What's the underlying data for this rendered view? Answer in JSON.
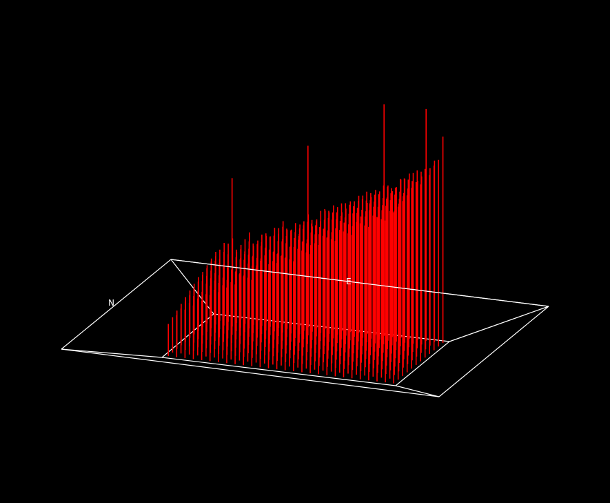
{
  "chart_data": {
    "type": "3d-spike",
    "labels": {
      "north": "N",
      "east": "E"
    },
    "colors": {
      "background": "#000000",
      "spikes": "#ff0000",
      "frame": "#ffffff"
    },
    "grid": false,
    "legend": "none",
    "rows": 12,
    "cols": 28,
    "zlim": [
      0,
      1
    ],
    "heights": [
      [
        0.42,
        0.48,
        0.51,
        0.47,
        0.55,
        0.5,
        0.53,
        0.58,
        0.62,
        0.57,
        0.6,
        0.66,
        0.63,
        0.68,
        0.71,
        0.67,
        0.73,
        0.76,
        0.72,
        0.79,
        0.81,
        0.78,
        0.84,
        0.87,
        0.83,
        0.9,
        0.93,
        0.88
      ],
      [
        0.4,
        0.46,
        0.5,
        0.45,
        0.53,
        0.49,
        0.56,
        0.55,
        0.6,
        0.59,
        0.63,
        0.64,
        0.61,
        0.7,
        0.69,
        0.72,
        0.71,
        0.75,
        0.78,
        0.77,
        0.8,
        0.83,
        0.82,
        0.86,
        0.89,
        0.87,
        0.91,
        0.95
      ],
      [
        0.38,
        0.44,
        0.47,
        0.52,
        0.49,
        0.54,
        0.52,
        0.59,
        0.57,
        0.63,
        0.61,
        0.62,
        0.67,
        0.66,
        0.73,
        0.7,
        0.76,
        0.74,
        0.77,
        0.82,
        0.79,
        0.85,
        0.81,
        0.88,
        0.85,
        0.92,
        0.89,
        0.94
      ],
      [
        0.36,
        0.43,
        0.45,
        0.48,
        0.51,
        0.5,
        0.55,
        0.56,
        0.59,
        0.61,
        0.64,
        0.62,
        0.66,
        0.69,
        0.68,
        0.74,
        0.72,
        0.78,
        0.75,
        0.8,
        0.83,
        0.8,
        0.86,
        0.84,
        0.9,
        0.88,
        0.93,
        0.91
      ],
      [
        0.35,
        0.41,
        0.46,
        0.44,
        0.52,
        0.48,
        0.54,
        0.57,
        0.55,
        0.62,
        0.6,
        0.65,
        0.63,
        0.7,
        0.67,
        0.71,
        0.75,
        0.73,
        0.79,
        0.76,
        0.81,
        0.84,
        0.82,
        0.87,
        0.85,
        0.91,
        0.87,
        0.96
      ],
      [
        0.33,
        0.39,
        0.42,
        0.47,
        0.45,
        0.51,
        0.53,
        0.52,
        0.58,
        0.56,
        0.61,
        0.64,
        0.62,
        0.68,
        0.71,
        0.69,
        0.74,
        0.77,
        0.74,
        0.8,
        0.78,
        0.83,
        0.86,
        0.84,
        0.89,
        0.86,
        0.92,
        0.9
      ],
      [
        0.31,
        0.37,
        0.41,
        0.43,
        0.48,
        0.46,
        0.52,
        0.55,
        0.53,
        0.59,
        0.57,
        0.63,
        0.6,
        0.66,
        0.64,
        0.72,
        0.7,
        0.75,
        0.73,
        0.78,
        0.81,
        0.79,
        0.84,
        0.82,
        0.88,
        0.85,
        0.9,
        0.93
      ],
      [
        0.29,
        0.35,
        0.4,
        0.42,
        0.44,
        0.49,
        0.47,
        0.54,
        0.56,
        0.55,
        0.6,
        0.58,
        0.64,
        0.67,
        0.65,
        0.7,
        0.73,
        0.71,
        0.77,
        0.75,
        0.8,
        0.78,
        0.85,
        0.83,
        0.87,
        0.89,
        0.88,
        0.92
      ],
      [
        0.27,
        0.33,
        0.36,
        0.41,
        0.43,
        0.45,
        0.5,
        0.48,
        0.54,
        0.53,
        0.59,
        0.61,
        0.59,
        0.64,
        0.68,
        0.66,
        0.71,
        0.74,
        0.72,
        0.78,
        0.76,
        0.82,
        0.8,
        0.85,
        0.83,
        0.88,
        0.86,
        0.9
      ],
      [
        0.25,
        0.31,
        0.35,
        0.38,
        0.42,
        0.44,
        0.46,
        0.51,
        0.49,
        0.55,
        0.58,
        0.56,
        0.62,
        0.6,
        0.66,
        0.69,
        0.67,
        0.73,
        0.71,
        0.76,
        0.79,
        0.77,
        0.82,
        0.85,
        0.81,
        0.87,
        0.84,
        0.89
      ],
      [
        0.23,
        0.29,
        0.33,
        0.36,
        0.39,
        0.42,
        0.45,
        0.47,
        0.52,
        0.5,
        0.56,
        0.54,
        0.6,
        0.63,
        0.61,
        0.67,
        0.65,
        0.7,
        0.74,
        0.72,
        0.77,
        0.75,
        0.81,
        0.79,
        0.84,
        0.82,
        0.86,
        0.88
      ],
      [
        0.21,
        0.27,
        0.31,
        0.34,
        0.37,
        0.41,
        0.43,
        0.46,
        0.48,
        0.53,
        0.51,
        0.57,
        0.55,
        0.61,
        0.64,
        0.62,
        0.68,
        0.66,
        0.71,
        0.75,
        0.73,
        0.78,
        0.76,
        0.82,
        0.8,
        0.85,
        0.83,
        0.87
      ]
    ],
    "outliers": [
      {
        "row": 0,
        "col": 20,
        "z": 1.25
      },
      {
        "row": 0,
        "col": 25,
        "z": 1.2
      },
      {
        "row": 2,
        "col": 12,
        "z": 1.1
      },
      {
        "row": 4,
        "col": 4,
        "z": 0.98
      },
      {
        "row": 0,
        "col": 27,
        "z": 1.05
      }
    ]
  }
}
